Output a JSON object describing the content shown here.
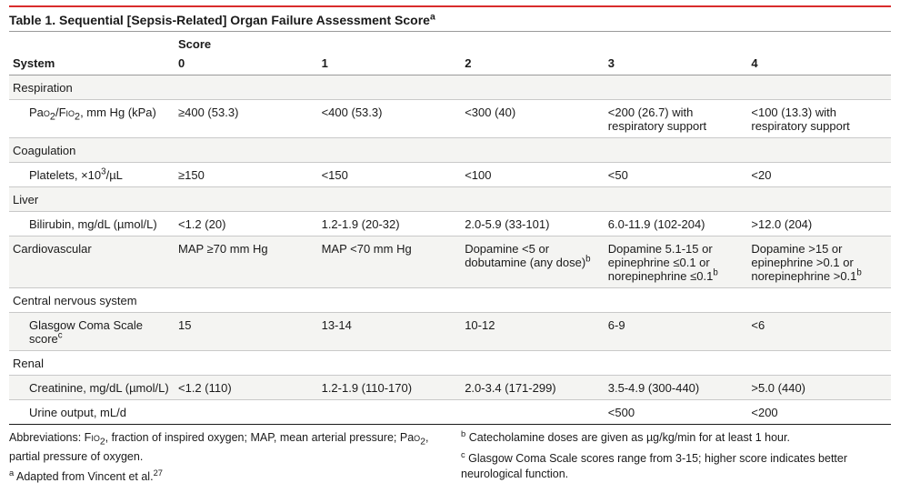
{
  "title_html": "Table 1. Sequential [Sepsis-Related] Organ Failure Assessment Score<sup>a</sup>",
  "score_label": "Score",
  "system_label": "System",
  "score_headers": [
    "0",
    "1",
    "2",
    "3",
    "4"
  ],
  "rows": [
    {
      "type": "group",
      "label": "Respiration",
      "zebra": true
    },
    {
      "type": "sub",
      "label_html": "Pa<span class=\"smallcaps\">O</span><sub>2</sub>/F<span class=\"smallcaps\">IO</span><sub>2</sub>, mm Hg (kPa)",
      "cells": [
        "≥400 (53.3)",
        "<400 (53.3)",
        "<300 (40)",
        "<200 (26.7) with respiratory support",
        "<100 (13.3) with respiratory support"
      ],
      "zebra": false
    },
    {
      "type": "group",
      "label": "Coagulation",
      "zebra": true
    },
    {
      "type": "sub",
      "label_html": "Platelets, ×10<sup>3</sup>/µL",
      "cells": [
        "≥150",
        "<150",
        "<100",
        "<50",
        "<20"
      ],
      "zebra": false
    },
    {
      "type": "group",
      "label": "Liver",
      "zebra": true
    },
    {
      "type": "sub",
      "label_html": "Bilirubin, mg/dL (µmol/L)",
      "cells": [
        "<1.2 (20)",
        "1.2-1.9 (20-32)",
        "2.0-5.9 (33-101)",
        "6.0-11.9 (102-204)",
        ">12.0 (204)"
      ],
      "zebra": false
    },
    {
      "type": "sub",
      "label_html": "Cardiovascular",
      "cells": [
        "MAP ≥70 mm Hg",
        "MAP <70 mm Hg",
        "Dopamine <5 or dobutamine (any dose)<sup>b</sup>",
        "Dopamine 5.1-15 or epinephrine ≤0.1 or norepinephrine ≤0.1<sup>b</sup>",
        "Dopamine >15 or epinephrine >0.1 or norepinephrine >0.1<sup>b</sup>"
      ],
      "zebra": true,
      "flush": true
    },
    {
      "type": "group",
      "label": "Central nervous system",
      "zebra": false
    },
    {
      "type": "sub",
      "label_html": "Glasgow Coma Scale score<sup>c</sup>",
      "cells": [
        "15",
        "13-14",
        "10-12",
        "6-9",
        "<6"
      ],
      "zebra": true
    },
    {
      "type": "group",
      "label": "Renal",
      "zebra": false
    },
    {
      "type": "sub",
      "label_html": "Creatinine, mg/dL (µmol/L)",
      "cells": [
        "<1.2 (110)",
        "1.2-1.9 (110-170)",
        "2.0-3.4 (171-299)",
        "3.5-4.9 (300-440)",
        ">5.0 (440)"
      ],
      "zebra": true
    },
    {
      "type": "sub",
      "label_html": "Urine output, mL/d",
      "cells": [
        "",
        "",
        "",
        "<500",
        "<200"
      ],
      "zebra": false,
      "last": true
    }
  ],
  "footnotes_left": [
    "Abbreviations: F<span class=\"smallcaps\">IO</span><sub>2</sub>, fraction of inspired oxygen; MAP, mean arterial pressure; Pa<span class=\"smallcaps\">O</span><sub>2</sub>, partial pressure of oxygen.",
    "<sup>a</sup> Adapted from Vincent et al.<sup>27</sup>"
  ],
  "footnotes_right": [
    "<sup>b</sup> Catecholamine doses are given as µg/kg/min for at least 1 hour.",
    "<sup>c</sup> Glasgow Coma Scale scores range from 3-15; higher score indicates better neurological function."
  ]
}
